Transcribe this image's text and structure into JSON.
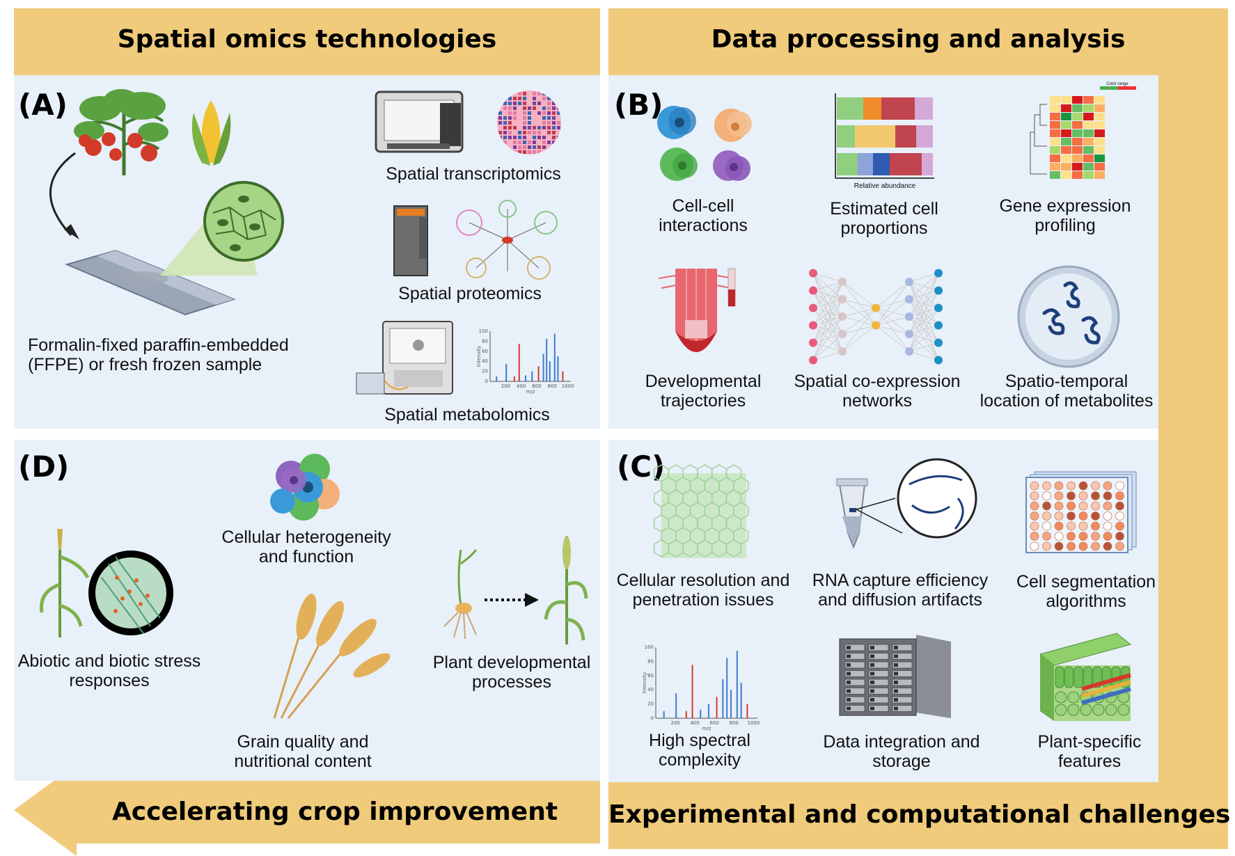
{
  "colors": {
    "band": "#efcb7b",
    "panel": "#e8f0f9",
    "tomato_red": "#d23a2a",
    "leaf_green": "#5aa140",
    "spectrum_blue": "#3d7bd0",
    "spectrum_red": "#d23a2a"
  },
  "banners": {
    "top_left": "Spatial omics technologies",
    "top_right": "Data processing and analysis",
    "bottom_left": "Accelerating crop improvement",
    "bottom_right": "Experimental and computational challenges"
  },
  "panel_a": {
    "letter": "(A)",
    "sample": "Formalin-fixed paraffin-embedded\n(FFPE) or fresh frozen sample",
    "transcriptomics": "Spatial transcriptomics",
    "proteomics": "Spatial proteomics",
    "metabolomics": "Spatial metabolomics"
  },
  "panel_b": {
    "letter": "(B)",
    "cell_cell": "Cell-cell\ninteractions",
    "proportions": "Estimated cell\nproportions",
    "proportions_axis": "Relative abundance",
    "gene_expression": "Gene expression\nprofiling",
    "heatmap_legend": "Color range",
    "developmental": "Developmental\ntrajectories",
    "coexpression": "Spatial co-expression\nnetworks",
    "spatiotemporal": "Spatio-temporal\nlocation of metabolites"
  },
  "panel_c": {
    "letter": "(C)",
    "resolution": "Cellular resolution and\npenetration issues",
    "rna_capture": "RNA capture efficiency\nand diffusion artifacts",
    "segmentation": "Cell segmentation\nalgorithms",
    "spectral": "High spectral\ncomplexity",
    "storage": "Data integration and\nstorage",
    "plant_features": "Plant-specific\nfeatures"
  },
  "panel_d": {
    "letter": "(D)",
    "heterogeneity": "Cellular heterogeneity\nand function",
    "stress": "Abiotic and biotic stress\nresponses",
    "development": "Plant developmental\nprocesses",
    "grain": "Grain quality and\nnutritional content"
  },
  "spectrum_axes": {
    "ylabel": "Intensity",
    "xlabel": "m/z",
    "yticks": [
      "100",
      "80",
      "60",
      "40",
      "20",
      "0"
    ],
    "xticks": [
      "200",
      "400",
      "600",
      "800",
      "1000"
    ]
  },
  "icons": [
    "tomato-plant-icon",
    "corn-icon",
    "microscope-slide-icon",
    "magnifier-icon",
    "sequencer-instrument-icon",
    "tissue-spot-array-icon",
    "mass-spec-tower-icon",
    "protein-network-icon",
    "maldi-instrument-icon",
    "spectrum-icon",
    "cell-cluster-icon",
    "stacked-bar-icon",
    "heatmap-icon",
    "root-tip-icon",
    "neural-network-icon",
    "metabolite-dish-icon",
    "cell-mesh-icon",
    "tube-rna-icon",
    "well-plate-icon",
    "server-rack-icon",
    "leaf-section-icon",
    "cell-heterogeneity-icon",
    "wheat-leaf-icon",
    "seedling-icon",
    "wheat-plant-icon",
    "grain-bundle-icon"
  ]
}
